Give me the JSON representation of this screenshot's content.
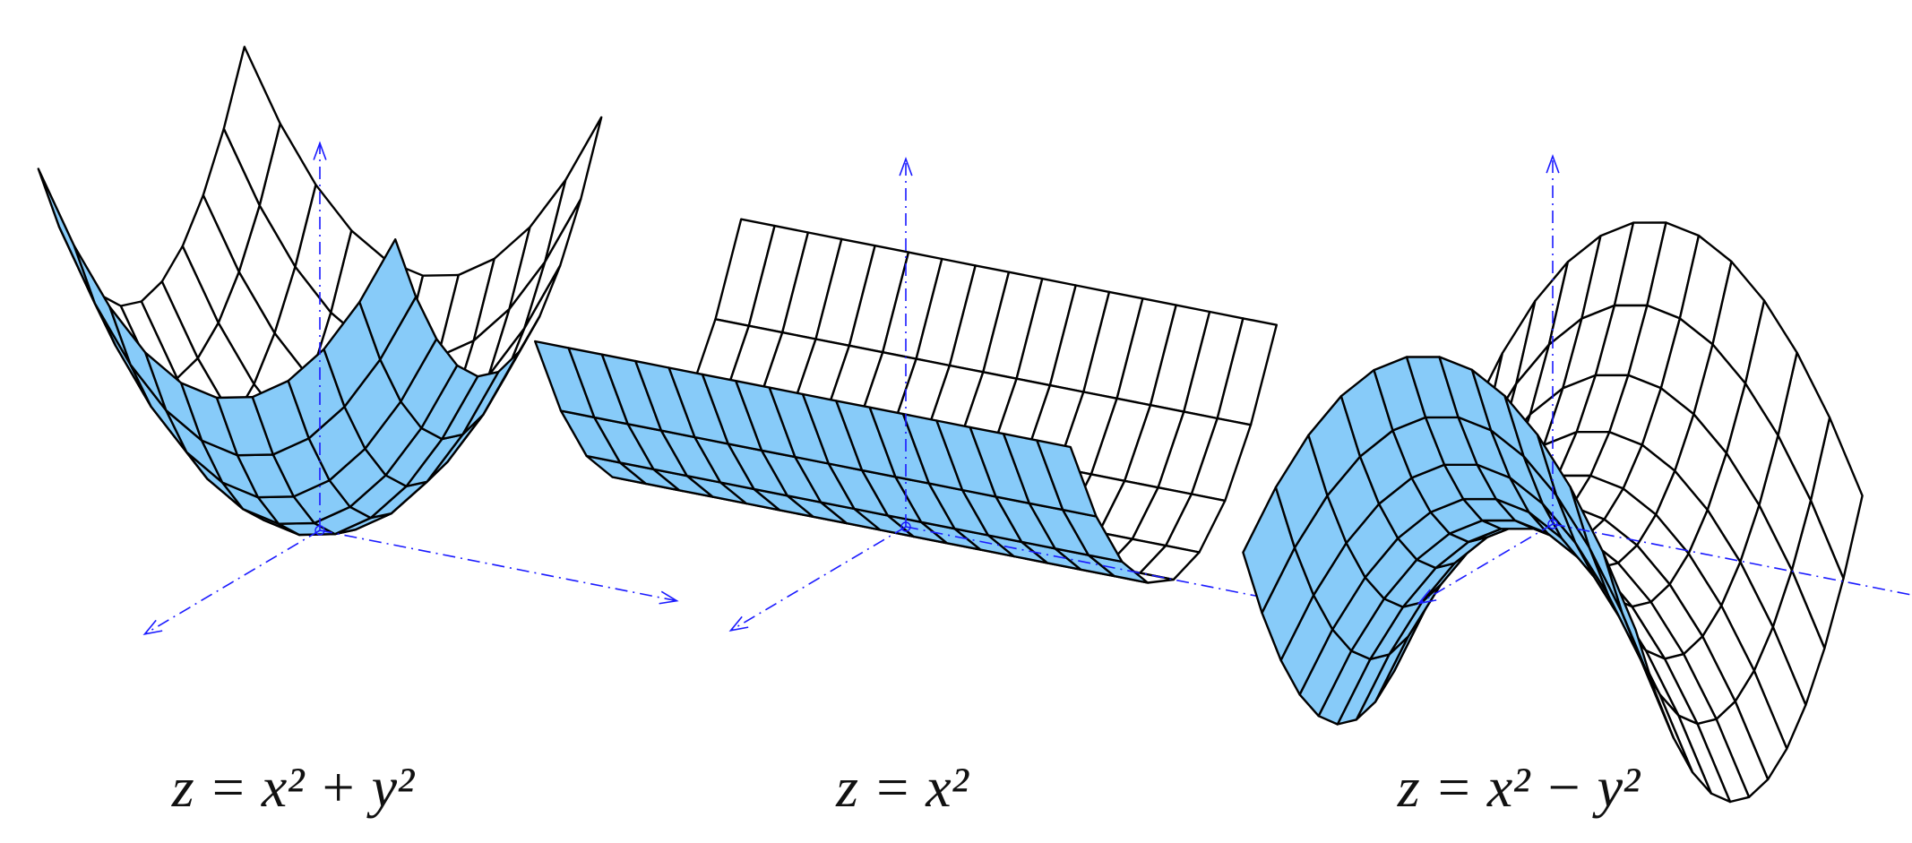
{
  "panels": [
    {
      "label": "z = x² + y²"
    },
    {
      "label": "z = x²"
    },
    {
      "label": "z = x² − y²"
    }
  ]
}
